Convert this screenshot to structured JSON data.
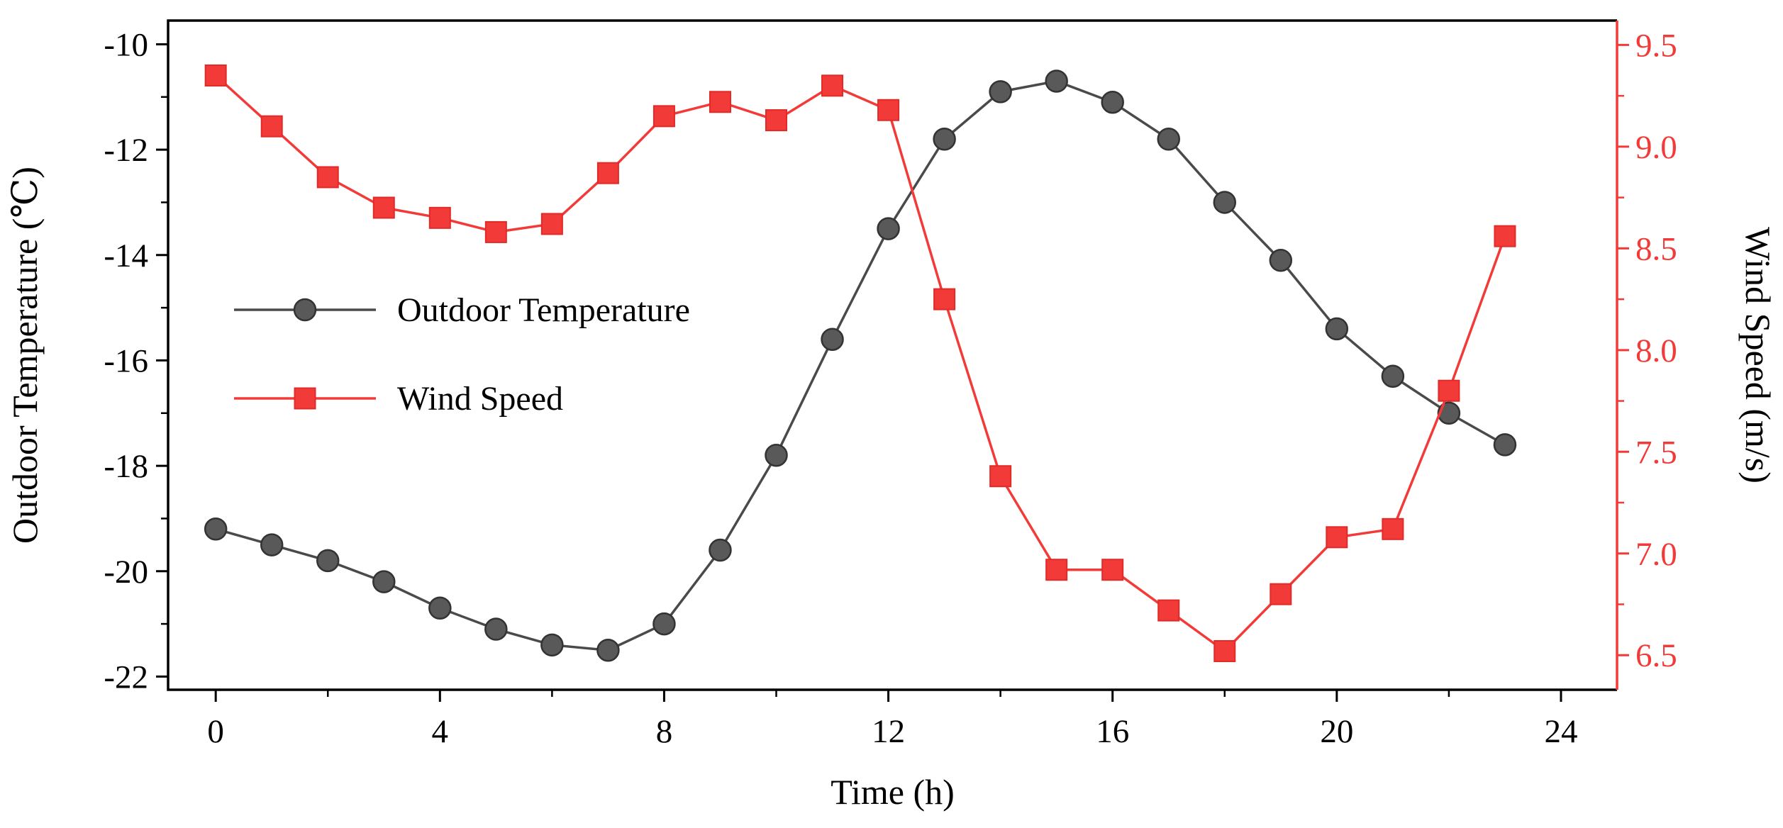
{
  "chart_data": {
    "type": "line",
    "title": "",
    "xlabel": "Time (h)",
    "ylabel_left": "Outdoor Temperature (℃)",
    "ylabel_right": "Wind Speed (m/s)",
    "x": [
      0,
      1,
      2,
      3,
      4,
      5,
      6,
      7,
      8,
      9,
      10,
      11,
      12,
      13,
      14,
      15,
      16,
      17,
      18,
      19,
      20,
      21,
      22,
      23
    ],
    "series": [
      {
        "name": "Outdoor Temperature",
        "axis": "left",
        "marker": "circle",
        "color": "#4a4a4a",
        "marker_fill": "#595959",
        "marker_edge": "#333333",
        "values": [
          -19.2,
          -19.5,
          -19.8,
          -20.2,
          -20.7,
          -21.1,
          -21.4,
          -21.5,
          -21.0,
          -19.6,
          -17.8,
          -15.6,
          -13.5,
          -11.8,
          -10.9,
          -10.7,
          -11.1,
          -11.8,
          -13.0,
          -14.1,
          -15.4,
          -16.3,
          -17.0,
          -17.6
        ]
      },
      {
        "name": "Wind Speed",
        "axis": "right",
        "marker": "square",
        "color": "#f23b38",
        "marker_fill": "#f23b38",
        "marker_edge": "#e02b28",
        "values": [
          9.35,
          9.1,
          8.85,
          8.7,
          8.65,
          8.58,
          8.62,
          8.87,
          9.15,
          9.22,
          9.13,
          9.3,
          9.18,
          8.25,
          7.38,
          6.92,
          6.92,
          6.72,
          6.52,
          6.8,
          7.08,
          7.12,
          7.8,
          8.56
        ]
      }
    ],
    "x_ticks": [
      0,
      4,
      8,
      12,
      16,
      20,
      24
    ],
    "x_minor_ticks": [
      2,
      6,
      10,
      14,
      18,
      22
    ],
    "xlim": [
      -0.85,
      25.0
    ],
    "left_ticks": [
      -10,
      -12,
      -14,
      -16,
      -18,
      -20,
      -22
    ],
    "left_minor_ticks": [
      -11,
      -13,
      -15,
      -17,
      -19,
      -21
    ],
    "left_lim": [
      -22.25,
      -9.55
    ],
    "right_ticks": [
      "9.5",
      "9.0",
      "8.5",
      "8.0",
      "7.5",
      "7.0",
      "6.5"
    ],
    "right_minor_ticks": [
      6.75,
      7.25,
      7.75,
      8.25,
      8.75,
      9.25
    ],
    "right_lim": [
      6.33,
      9.62
    ],
    "legend": {
      "position": "inside-left",
      "entries": [
        "Outdoor Temperature",
        "Wind Speed"
      ]
    },
    "grid": false,
    "colors": {
      "temperature": "#4a4a4a",
      "wind": "#f23b38",
      "right_axis": "#f23b38",
      "text": "#000000"
    }
  }
}
